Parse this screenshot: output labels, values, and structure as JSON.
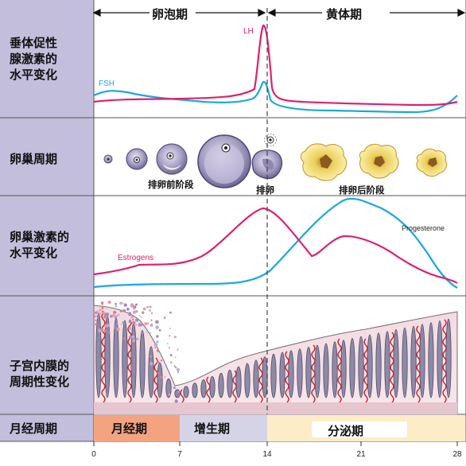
{
  "rows": {
    "hormone": "垂体促性\n腺激素的\n水平变化",
    "follicle": "卵巢周期",
    "ovarian": "卵巢激素的\n水平变化",
    "endometrium": "子宫内膜的\n周期性变化",
    "menstrual": "月经周期"
  },
  "top_phases": {
    "follicular": "卵泡期",
    "luteal": "黄体期"
  },
  "hormone_curves": {
    "lh_label": "LH",
    "fsh_label": "FSH",
    "lh_color": "#e0206f",
    "fsh_color": "#19a8e0"
  },
  "follicle_stages": {
    "pre": "排卵前阶段",
    "ovulation": "排卵",
    "post": "排卵后阶段"
  },
  "ovarian_curves": {
    "estrogen_label": "Estrogens",
    "progesterone_label": "Progesterone",
    "estrogen_color": "#e0206f",
    "progesterone_color": "#19a8e0"
  },
  "menstrual_phases": {
    "menses": "月经期",
    "proliferative": "增生期",
    "secretory": "分泌期"
  },
  "x_ticks": [
    "0",
    "7",
    "14",
    "21",
    "28"
  ]
}
